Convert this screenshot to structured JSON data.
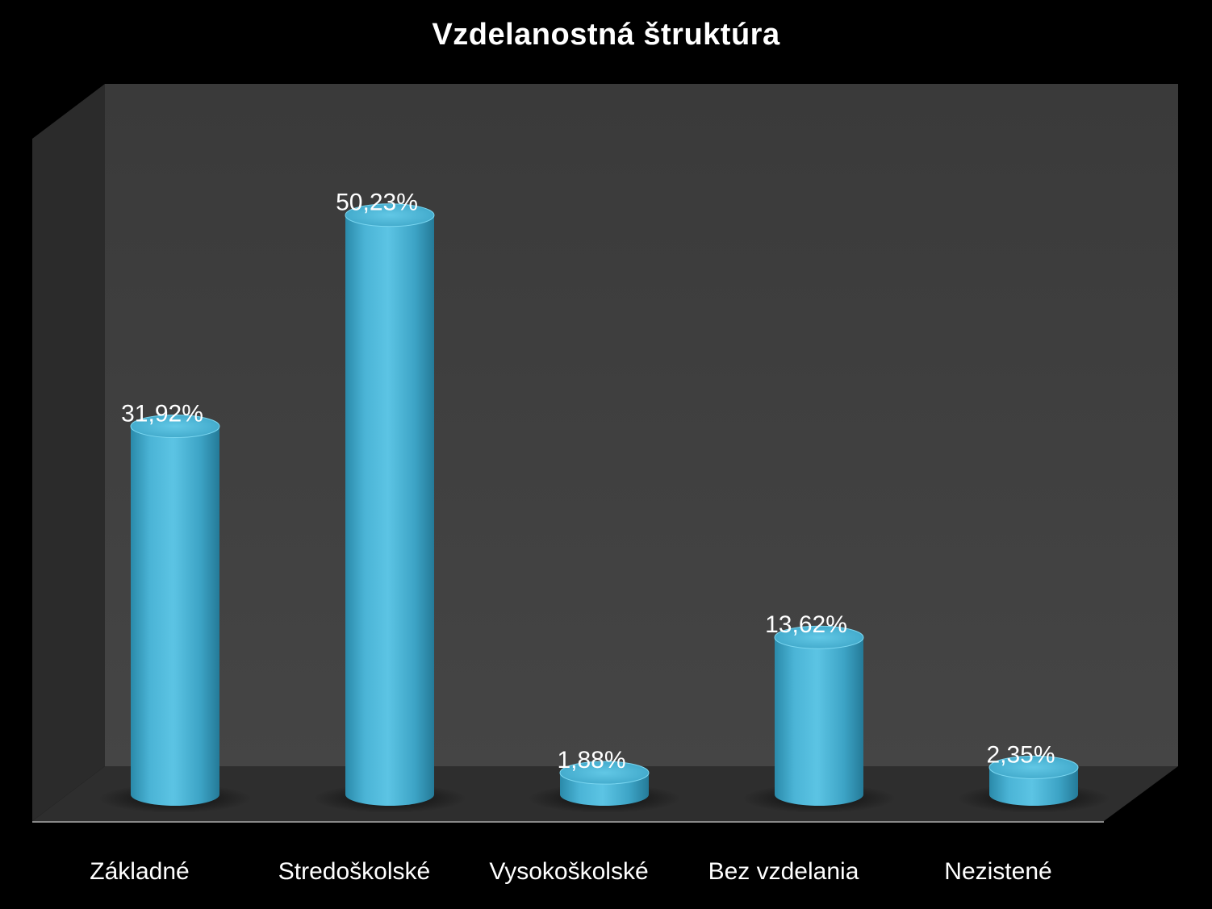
{
  "chart_data": {
    "type": "bar",
    "title": "Vzdelanostná štruktúra",
    "categories": [
      "Základné",
      "Stredoškolské",
      "Vysokoškolské",
      "Bez vzdelania",
      "Nezistené"
    ],
    "values": [
      31.92,
      50.23,
      1.88,
      13.62,
      2.35
    ],
    "data_labels": [
      "31,92%",
      "50,23%",
      "1,88%",
      "13,62%",
      "2,35%"
    ],
    "xlabel": "",
    "ylabel": "",
    "grid": false,
    "legend": "none",
    "bar_shape": "3d-cylinder",
    "colors": {
      "bar": "#4bb4d6",
      "bar_dark": "#2a8aaa",
      "background": "#000000",
      "back_wall": "#404040",
      "side_wall": "#2b2b2b",
      "floor": "#2e2e2e",
      "text": "#ffffff"
    }
  }
}
